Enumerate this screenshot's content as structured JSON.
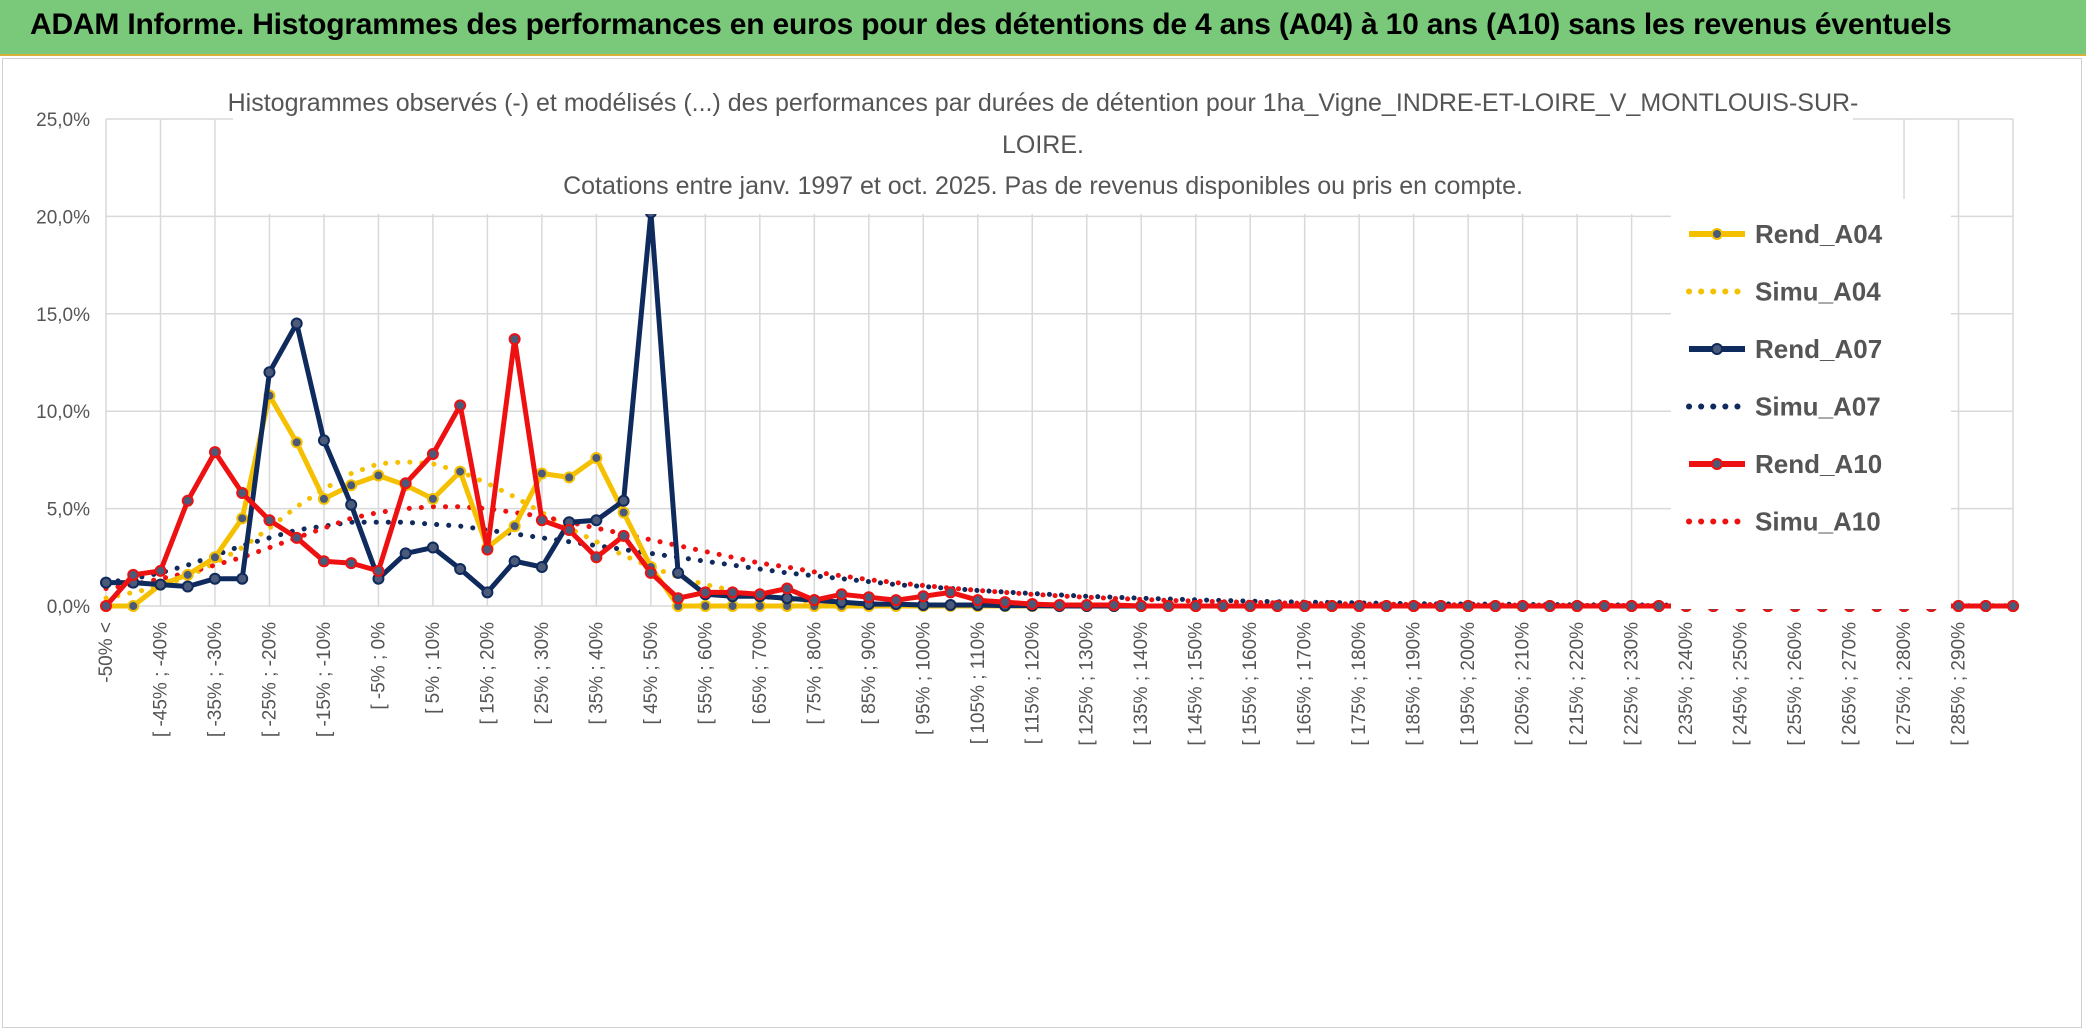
{
  "header": {
    "title": "ADAM Informe. Histogrammes des performances en euros pour des détentions de 4 ans (A04) à 10 ans (A10) sans les revenus éventuels"
  },
  "chart_data": {
    "type": "line",
    "title_lines": [
      "Histogrammes observés (-) et modélisés (...) des performances par durées de détention pour 1ha_Vigne_INDRE-ET-LOIRE_V_MONTLOUIS-SUR-",
      "LOIRE.",
      "Cotations entre janv. 1997 et oct. 2025. Pas de revenus disponibles ou pris en compte."
    ],
    "ylim": [
      0,
      25
    ],
    "y_ticks": [
      "0,0%",
      "5,0%",
      "10,0%",
      "15,0%",
      "20,0%",
      "25,0%"
    ],
    "grid": true,
    "legend_position": "right",
    "x_tick_labels": [
      "-50% <",
      "[ -45% ; -40%",
      "[ -35% ; -30%",
      "[ -25% ; -20%",
      "[ -15% ; -10%",
      "[ -5% ; 0%",
      "[ 5% ; 10%",
      "[ 15% ; 20%",
      "[ 25% ; 30%",
      "[ 35% ; 40%",
      "[ 45% ; 50%",
      "[ 55% ; 60%",
      "[ 65% ; 70%",
      "[ 75% ; 80%",
      "[ 85% ; 90%",
      "[ 95% ; 100%",
      "[ 105% ; 110%",
      "[ 115% ; 120%",
      "[ 125% ; 130%",
      "[ 135% ; 140%",
      "[ 145% ; 150%",
      "[ 155% ; 160%",
      "[ 165% ; 170%",
      "[ 175% ; 180%",
      "[ 185% ; 190%",
      "[ 195% ; 200%",
      "[ 205% ; 210%",
      "[ 215% ; 220%",
      "[ 225% ; 230%",
      "[ 235% ; 240%",
      "[ 245% ; 250%",
      "[ 255% ; 260%",
      "[ 265% ; 270%",
      "[ 275% ; 280%",
      "[ 285% ; 290%"
    ],
    "series": [
      {
        "name": "Rend_A04",
        "style": "solid",
        "markers": true,
        "color": "#f5c000",
        "values": [
          0,
          0,
          1.1,
          1.6,
          2.5,
          4.5,
          10.8,
          8.4,
          5.5,
          6.2,
          6.7,
          6.2,
          5.5,
          6.9,
          3.0,
          4.1,
          6.8,
          6.6,
          7.6,
          4.8,
          2.0,
          0.0,
          0.0,
          0.0,
          0.0,
          0.0,
          0.0,
          0.0,
          0.0,
          0.0,
          0.0,
          0.0,
          0.0,
          0.0,
          0.0,
          0.0,
          0.0,
          0.0,
          0.0,
          0.0,
          0.0,
          0.0,
          0.0,
          0.0,
          0.0,
          0.0,
          0.0,
          0.0,
          0.0,
          0.0,
          0.0,
          0.0,
          0.0,
          0.0,
          0.0,
          0.0,
          0.0,
          0.0,
          0.0,
          0.0,
          0.0,
          0.0,
          0.0,
          0.0,
          0.0,
          0.0,
          0.0,
          0.0,
          0.0,
          0.0,
          0.0
        ]
      },
      {
        "name": "Simu_A04",
        "style": "dotted",
        "markers": false,
        "color": "#f5c000",
        "values": [
          0.4,
          0.7,
          1.0,
          1.5,
          2.2,
          3.0,
          4.0,
          5.1,
          6.0,
          6.8,
          7.3,
          7.4,
          7.3,
          6.9,
          6.3,
          5.6,
          4.8,
          4.0,
          3.3,
          2.6,
          2.0,
          1.5,
          1.1,
          0.8,
          0.5,
          0.35,
          0.22,
          0.14,
          0.08,
          0.05,
          0.03,
          0.02,
          0.01,
          0.0,
          0.0,
          0.0,
          0.0,
          0.0,
          0.0,
          0.0,
          0.0,
          0.0,
          0.0,
          0.0,
          0.0,
          0.0,
          0.0,
          0.0,
          0.0,
          0.0,
          0.0,
          0.0,
          0.0,
          0.0,
          0.0,
          0.0,
          0.0,
          0.0,
          0.0,
          0.0,
          0.0,
          0.0,
          0.0,
          0.0,
          0.0,
          0.0,
          0.0,
          0.0,
          0.0,
          0.0,
          0.0
        ]
      },
      {
        "name": "Rend_A07",
        "style": "solid",
        "markers": true,
        "color": "#0f2a5c",
        "values": [
          1.2,
          1.2,
          1.1,
          1.0,
          1.4,
          1.4,
          12.0,
          14.5,
          8.5,
          5.2,
          1.4,
          2.7,
          3.0,
          1.9,
          0.7,
          2.3,
          2.0,
          4.3,
          4.4,
          5.4,
          20.2,
          1.7,
          0.6,
          0.5,
          0.5,
          0.4,
          0.3,
          0.2,
          0.1,
          0.1,
          0.05,
          0.05,
          0.05,
          0.02,
          0.02,
          0.0,
          0.0,
          0.0,
          0.0,
          0.0,
          0.0,
          0.0,
          0.0,
          0.0,
          0.0,
          0.0,
          0.0,
          0.0,
          0.0,
          0.0,
          0.0,
          0.0,
          0.0,
          0.0,
          0.0,
          0.0,
          0.0,
          0.0,
          0.0,
          0.0,
          0.0,
          0.0,
          0.0,
          0.0,
          0.0,
          0.0,
          0.0,
          0.0,
          0.0,
          0.0,
          0.0
        ]
      },
      {
        "name": "Simu_A07",
        "style": "dotted",
        "markers": false,
        "color": "#0f2a5c",
        "values": [
          1.2,
          1.4,
          1.7,
          2.1,
          2.6,
          3.1,
          3.5,
          3.9,
          4.1,
          4.3,
          4.3,
          4.3,
          4.2,
          4.1,
          3.9,
          3.7,
          3.5,
          3.3,
          3.1,
          2.9,
          2.7,
          2.5,
          2.3,
          2.1,
          1.9,
          1.7,
          1.55,
          1.4,
          1.25,
          1.1,
          1.0,
          0.9,
          0.8,
          0.72,
          0.64,
          0.57,
          0.5,
          0.45,
          0.4,
          0.36,
          0.32,
          0.28,
          0.25,
          0.22,
          0.2,
          0.18,
          0.16,
          0.14,
          0.12,
          0.11,
          0.1,
          0.09,
          0.08,
          0.07,
          0.06,
          0.055,
          0.05,
          0.045,
          0.04,
          0.035,
          0.03,
          0.028,
          0.026,
          0.024,
          0.022,
          0.02,
          0.018,
          0.016,
          0.014,
          0.012,
          0.01
        ]
      },
      {
        "name": "Rend_A10",
        "style": "solid",
        "markers": true,
        "color": "#ee1111",
        "values": [
          0.0,
          1.6,
          1.8,
          5.4,
          7.9,
          5.8,
          4.4,
          3.5,
          2.3,
          2.2,
          1.8,
          6.3,
          7.8,
          10.3,
          2.9,
          13.7,
          4.4,
          3.9,
          2.5,
          3.6,
          1.7,
          0.4,
          0.7,
          0.7,
          0.6,
          0.9,
          0.3,
          0.6,
          0.45,
          0.3,
          0.5,
          0.7,
          0.3,
          0.2,
          0.1,
          0.05,
          0.05,
          0.05,
          0.0,
          0.0,
          0.0,
          0.0,
          0.0,
          0.0,
          0.0,
          0.0,
          0.0,
          0.0,
          0.0,
          0.0,
          0.0,
          0.0,
          0.0,
          0.0,
          0.0,
          0.0,
          0.0,
          0.0,
          0.0,
          0.0,
          0.0,
          0.0,
          0.0,
          0.0,
          0.0,
          0.0,
          0.0,
          0.0,
          0.0,
          0.0,
          0.0
        ]
      },
      {
        "name": "Simu_A10",
        "style": "dotted",
        "markers": false,
        "color": "#ee1111",
        "values": [
          0.9,
          1.1,
          1.4,
          1.7,
          2.1,
          2.5,
          3.0,
          3.5,
          4.0,
          4.5,
          4.8,
          5.0,
          5.1,
          5.1,
          5.0,
          4.8,
          4.6,
          4.3,
          4.0,
          3.7,
          3.4,
          3.1,
          2.8,
          2.5,
          2.2,
          2.0,
          1.75,
          1.55,
          1.35,
          1.2,
          1.05,
          0.92,
          0.8,
          0.7,
          0.6,
          0.52,
          0.45,
          0.39,
          0.34,
          0.29,
          0.25,
          0.22,
          0.19,
          0.16,
          0.14,
          0.12,
          0.1,
          0.09,
          0.08,
          0.07,
          0.06,
          0.05,
          0.045,
          0.04,
          0.035,
          0.03,
          0.027,
          0.024,
          0.021,
          0.018,
          0.016,
          0.014,
          0.012,
          0.01,
          0.009,
          0.008,
          0.007,
          0.006,
          0.005,
          0.004,
          0.003
        ]
      }
    ]
  }
}
